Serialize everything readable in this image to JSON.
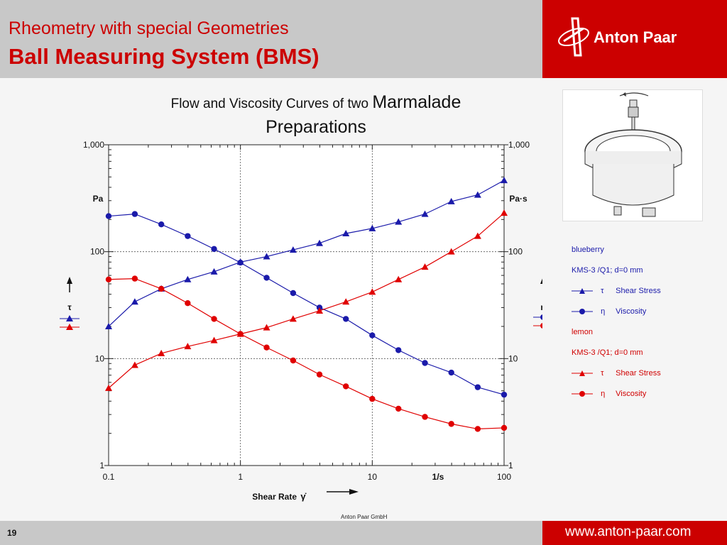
{
  "header": {
    "title_line1": "Rheometry with special Geometries",
    "title_line2": "Ball Measuring System (BMS)",
    "brand": "Anton Paar"
  },
  "footer": {
    "page_number": "19",
    "website": "www.anton-paar.com",
    "copyright": "Anton Paar GmbH"
  },
  "chart_title": {
    "part1": "Flow and Viscosity Curves of two ",
    "part2": "Marmalade",
    "part3": "Preparations"
  },
  "legend": {
    "blueberry_title": "blueberry",
    "blueberry_system": "KMS-3 /Q1; d=0 mm",
    "lemon_title": "lemon",
    "lemon_system": "KMS-3 /Q1; d=0 mm",
    "tau_symbol": "τ",
    "eta_symbol": "η",
    "shear_stress": "Shear Stress",
    "viscosity": "Viscosity"
  },
  "colors": {
    "brand_red": "#cc0000",
    "blueberry": "#1a1aaa",
    "lemon": "#e00000"
  },
  "chart_data": {
    "type": "line",
    "x_scale": "log",
    "y_scale": "log",
    "xlim": [
      0.1,
      100
    ],
    "ylim": [
      1,
      1000
    ],
    "x_ticks": [
      "0.1",
      "1",
      "10",
      "100"
    ],
    "y_ticks": [
      "1",
      "10",
      "100",
      "1,000"
    ],
    "x_unit": "1/s",
    "xlabel": "Shear Rate",
    "xlabel_symbol": "γ̇",
    "ylabel_left": "Pa",
    "ylabel_right": "Pa·s",
    "left_axis_symbol": "τ",
    "right_axis_symbol": "η",
    "grid": true,
    "x": [
      0.1,
      0.158,
      0.251,
      0.398,
      0.631,
      1,
      1.58,
      2.51,
      3.98,
      6.31,
      10,
      15.8,
      25.1,
      39.8,
      63.1,
      100
    ],
    "series": [
      {
        "name": "blueberry Shear Stress",
        "color": "#1a1aaa",
        "marker": "triangle",
        "values": [
          20,
          34,
          45,
          55,
          65,
          80,
          90,
          104,
          120,
          148,
          165,
          190,
          225,
          295,
          340,
          465
        ]
      },
      {
        "name": "blueberry Viscosity",
        "color": "#1a1aaa",
        "marker": "circle",
        "values": [
          215,
          225,
          180,
          140,
          106,
          79,
          57,
          41,
          30,
          23.5,
          16.5,
          12,
          9.1,
          7.4,
          5.4,
          4.6
        ]
      },
      {
        "name": "lemon Shear Stress",
        "color": "#e00000",
        "marker": "triangle",
        "values": [
          5.3,
          8.7,
          11.2,
          13,
          14.8,
          17,
          19.5,
          23.5,
          28,
          34,
          42,
          55,
          72,
          100,
          140,
          230
        ]
      },
      {
        "name": "lemon Viscosity",
        "color": "#e00000",
        "marker": "circle",
        "values": [
          55,
          56,
          45,
          33,
          23.5,
          17,
          12.7,
          9.6,
          7.1,
          5.5,
          4.2,
          3.4,
          2.85,
          2.45,
          2.2,
          2.25
        ]
      }
    ]
  }
}
